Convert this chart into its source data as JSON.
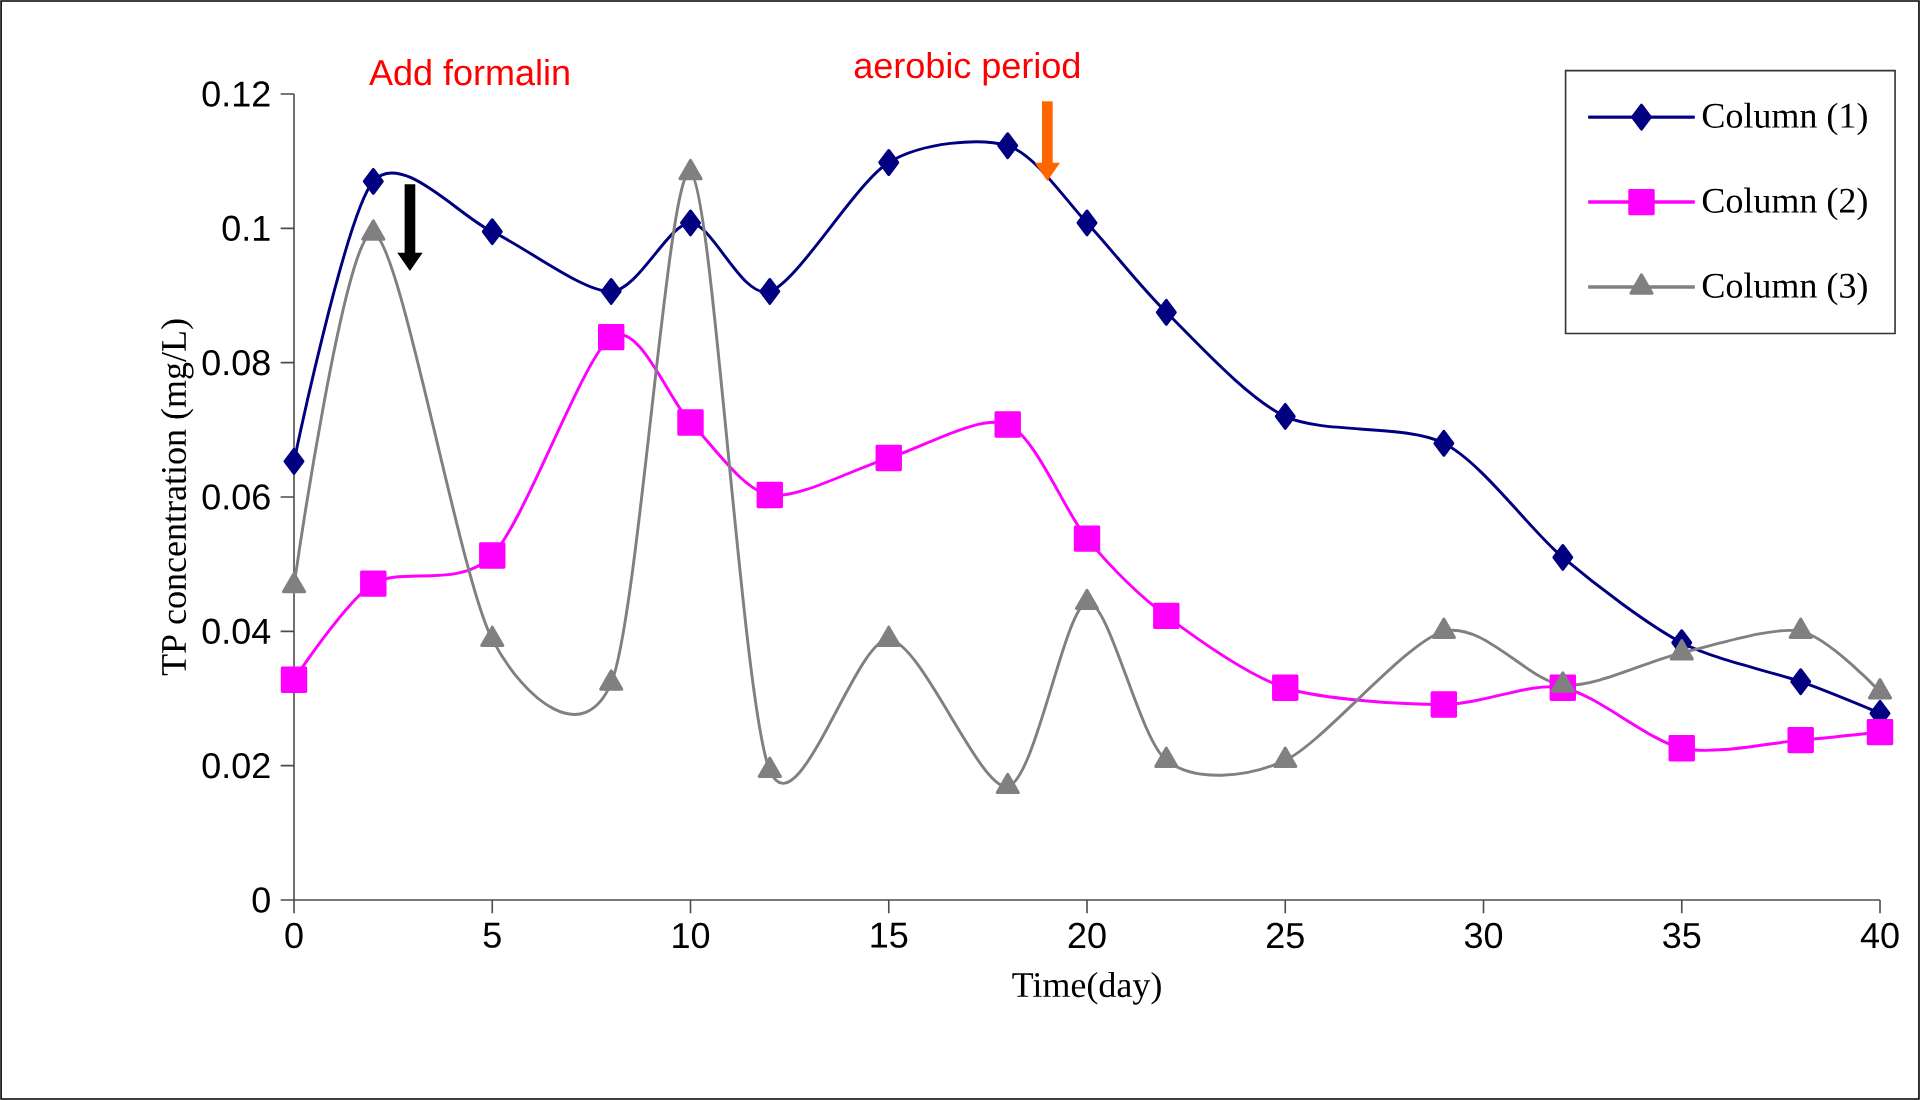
{
  "chart_data": {
    "type": "line",
    "xlabel": "Time(day)",
    "ylabel": "TP concentration (mg/L)",
    "x": [
      0,
      2,
      5,
      8,
      10,
      12,
      15,
      18,
      20,
      22,
      25,
      29,
      32,
      35,
      38,
      40
    ],
    "series": [
      {
        "name": "Column (1)",
        "color": "#000080",
        "marker": "diamond",
        "values": [
          0.0653,
          0.107,
          0.0995,
          0.0906,
          0.1008,
          0.0906,
          0.1098,
          0.1123,
          0.1008,
          0.0875,
          0.072,
          0.068,
          0.051,
          0.0383,
          0.0325,
          0.0278
        ]
      },
      {
        "name": "Column (2)",
        "color": "#ff00ff",
        "marker": "square",
        "values": [
          0.0328,
          0.0471,
          0.0513,
          0.0838,
          0.0711,
          0.0603,
          0.0658,
          0.0708,
          0.0538,
          0.0423,
          0.0316,
          0.0291,
          0.0316,
          0.0226,
          0.0238,
          0.025
        ]
      },
      {
        "name": "Column (3)",
        "color": "#808080",
        "marker": "triangle",
        "values": [
          0.0468,
          0.0993,
          0.0388,
          0.0323,
          0.1083,
          0.0193,
          0.0388,
          0.0169,
          0.0443,
          0.0208,
          0.0208,
          0.04,
          0.032,
          0.0368,
          0.04,
          0.031
        ]
      }
    ],
    "xlim": [
      0,
      40
    ],
    "xticks": [
      0,
      5,
      10,
      15,
      20,
      25,
      30,
      35,
      40
    ],
    "ylim": [
      0,
      0.12
    ],
    "yticks": [
      0,
      0.02,
      0.04,
      0.06,
      0.08,
      0.1,
      0.12
    ],
    "annotations": [
      "Add formalin",
      {
        "text": "aerobic period",
        "x": 19,
        "y": 0.107
      }
    ],
    "legend": "top right",
    "grid": false,
    "line_style": "solid"
  }
}
